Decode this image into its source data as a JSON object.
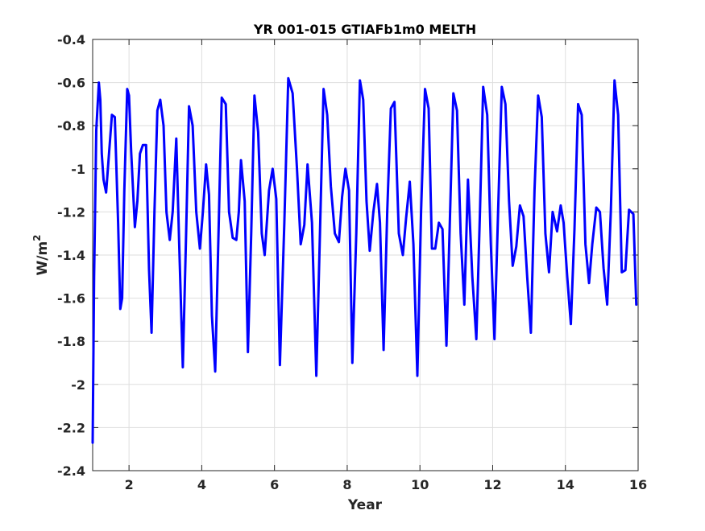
{
  "chart_data": {
    "type": "line",
    "title": "YR 001-015 GTIAFb1m0 MELTH",
    "xlabel": "Year",
    "ylabel_base": "W/m",
    "ylabel_superscript": "2",
    "xlim": [
      1,
      16
    ],
    "ylim": [
      -2.4,
      -0.4
    ],
    "xticks": [
      2,
      4,
      6,
      8,
      10,
      12,
      14,
      16
    ],
    "yticks": [
      -2.4,
      -2.2,
      -2,
      -1.8,
      -1.6,
      -1.4,
      -1.2,
      -1,
      -0.8,
      -0.6,
      -0.4
    ],
    "ytick_labels": [
      "-2.4",
      "-2.2",
      "-2",
      "-1.8",
      "-1.6",
      "-1.4",
      "-1.2",
      "-1",
      "-0.8",
      "-0.6",
      "-0.4"
    ],
    "xtick_labels": [
      "2",
      "4",
      "6",
      "8",
      "10",
      "12",
      "14",
      "16"
    ],
    "grid": true,
    "series": [
      {
        "color": "#0000ff",
        "x": [
          1.0,
          1.04,
          1.1,
          1.17,
          1.21,
          1.25,
          1.3,
          1.37,
          1.45,
          1.53,
          1.61,
          1.7,
          1.76,
          1.81,
          1.87,
          1.95,
          2.0,
          2.06,
          2.16,
          2.23,
          2.3,
          2.38,
          2.47,
          2.55,
          2.62,
          2.7,
          2.78,
          2.86,
          2.95,
          3.03,
          3.12,
          3.2,
          3.3,
          3.38,
          3.48,
          3.57,
          3.65,
          3.75,
          3.85,
          3.95,
          4.03,
          4.12,
          4.2,
          4.28,
          4.37,
          4.46,
          4.55,
          4.66,
          4.75,
          4.85,
          4.95,
          5.02,
          5.08,
          5.18,
          5.27,
          5.36,
          5.45,
          5.55,
          5.65,
          5.73,
          5.85,
          5.95,
          6.05,
          6.15,
          6.27,
          6.38,
          6.5,
          6.62,
          6.72,
          6.82,
          6.91,
          7.03,
          7.15,
          7.25,
          7.35,
          7.45,
          7.55,
          7.66,
          7.77,
          7.86,
          7.95,
          8.05,
          8.14,
          8.25,
          8.35,
          8.44,
          8.53,
          8.62,
          8.72,
          8.82,
          8.9,
          9.0,
          9.1,
          9.2,
          9.3,
          9.42,
          9.53,
          9.62,
          9.72,
          9.82,
          9.93,
          10.03,
          10.14,
          10.24,
          10.33,
          10.42,
          10.52,
          10.62,
          10.73,
          10.82,
          10.92,
          11.02,
          11.12,
          11.22,
          11.32,
          11.44,
          11.55,
          11.65,
          11.74,
          11.85,
          11.95,
          12.05,
          12.15,
          12.25,
          12.35,
          12.45,
          12.55,
          12.65,
          12.75,
          12.85,
          12.95,
          13.05,
          13.15,
          13.25,
          13.35,
          13.45,
          13.55,
          13.65,
          13.77,
          13.87,
          13.95,
          14.05,
          14.15,
          14.25,
          14.35,
          14.45,
          14.55,
          14.65,
          14.74,
          14.85,
          14.95,
          15.05,
          15.15,
          15.25,
          15.35,
          15.45,
          15.55,
          15.65,
          15.75,
          15.87,
          15.95
        ],
        "y": [
          -2.27,
          -1.5,
          -0.82,
          -0.6,
          -0.68,
          -0.93,
          -1.05,
          -1.11,
          -0.93,
          -0.75,
          -0.76,
          -1.25,
          -1.65,
          -1.6,
          -1.1,
          -0.63,
          -0.66,
          -0.92,
          -1.27,
          -1.15,
          -0.93,
          -0.89,
          -0.89,
          -1.47,
          -1.76,
          -1.2,
          -0.73,
          -0.68,
          -0.8,
          -1.2,
          -1.33,
          -1.2,
          -0.86,
          -1.35,
          -1.92,
          -1.3,
          -0.71,
          -0.8,
          -1.2,
          -1.37,
          -1.2,
          -0.98,
          -1.12,
          -1.68,
          -1.94,
          -1.3,
          -0.67,
          -0.7,
          -1.2,
          -1.32,
          -1.33,
          -1.2,
          -0.96,
          -1.15,
          -1.85,
          -1.3,
          -0.66,
          -0.83,
          -1.3,
          -1.4,
          -1.1,
          -1.0,
          -1.14,
          -1.91,
          -1.25,
          -0.58,
          -0.65,
          -1.0,
          -1.35,
          -1.26,
          -0.98,
          -1.25,
          -1.96,
          -1.3,
          -0.63,
          -0.75,
          -1.08,
          -1.3,
          -1.34,
          -1.13,
          -1.0,
          -1.1,
          -1.9,
          -1.3,
          -0.59,
          -0.68,
          -1.15,
          -1.38,
          -1.2,
          -1.07,
          -1.25,
          -1.84,
          -1.2,
          -0.72,
          -0.69,
          -1.3,
          -1.4,
          -1.23,
          -1.06,
          -1.35,
          -1.96,
          -1.2,
          -0.63,
          -0.72,
          -1.37,
          -1.37,
          -1.25,
          -1.28,
          -1.82,
          -1.26,
          -0.65,
          -0.73,
          -1.3,
          -1.63,
          -1.05,
          -1.5,
          -1.79,
          -1.2,
          -0.62,
          -0.75,
          -1.35,
          -1.79,
          -1.2,
          -0.62,
          -0.7,
          -1.15,
          -1.45,
          -1.36,
          -1.17,
          -1.22,
          -1.5,
          -1.76,
          -1.1,
          -0.66,
          -0.76,
          -1.3,
          -1.48,
          -1.2,
          -1.29,
          -1.17,
          -1.25,
          -1.5,
          -1.72,
          -1.28,
          -0.7,
          -0.75,
          -1.35,
          -1.53,
          -1.35,
          -1.18,
          -1.2,
          -1.46,
          -1.63,
          -1.2,
          -0.59,
          -0.75,
          -1.48,
          -1.47,
          -1.19,
          -1.21,
          -1.63
        ]
      }
    ]
  }
}
